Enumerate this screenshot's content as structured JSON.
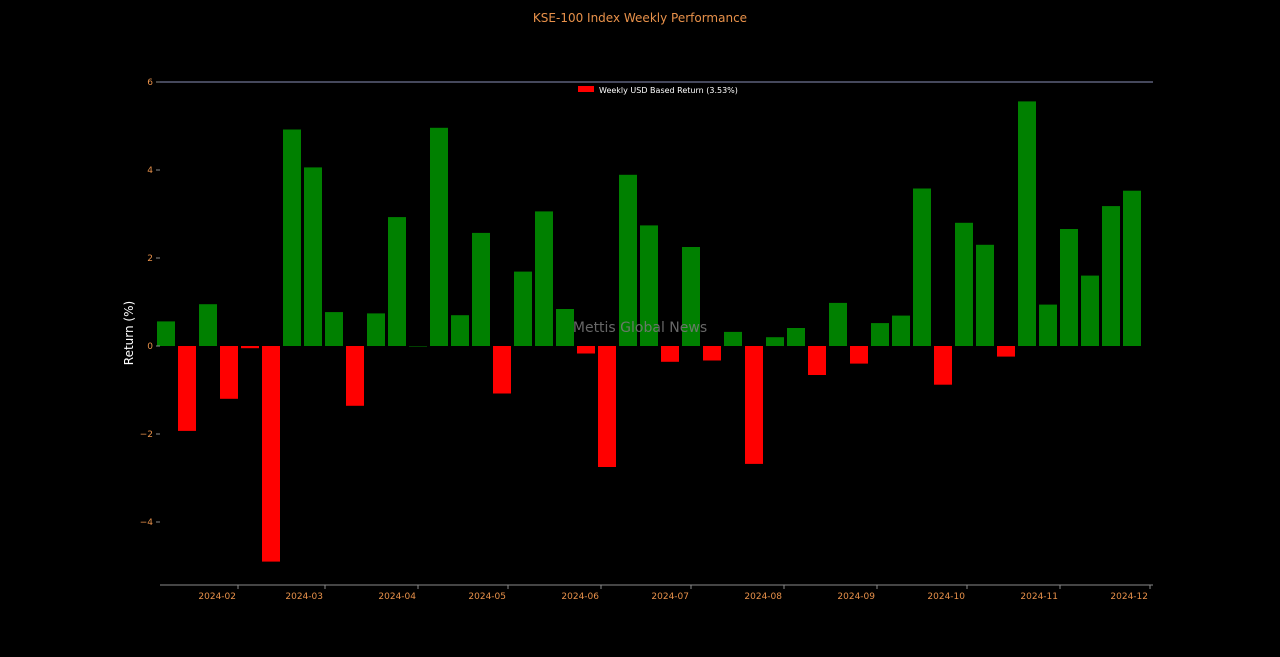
{
  "chart_data": {
    "type": "bar",
    "title": "KSE-100 Index Weekly Performance",
    "ylabel": "Return (%)",
    "xlabel": "",
    "ylim": [
      -5.4,
      6.1
    ],
    "yticks": [
      -4,
      -2,
      0,
      2,
      4,
      6
    ],
    "ytick_labels": [
      "−4",
      "−2",
      "0",
      "2",
      "4",
      "6"
    ],
    "xticks": [
      {
        "label": "2024-02",
        "date": "2024-02-01"
      },
      {
        "label": "2024-03",
        "date": "2024-03-01"
      },
      {
        "label": "2024-04",
        "date": "2024-04-01"
      },
      {
        "label": "2024-05",
        "date": "2024-05-01"
      },
      {
        "label": "2024-06",
        "date": "2024-06-01"
      },
      {
        "label": "2024-07",
        "date": "2024-07-01"
      },
      {
        "label": "2024-08",
        "date": "2024-08-01"
      },
      {
        "label": "2024-09",
        "date": "2024-09-01"
      },
      {
        "label": "2024-10",
        "date": "2024-10-01"
      },
      {
        "label": "2024-11",
        "date": "2024-11-01"
      },
      {
        "label": "2024-12",
        "date": "2024-12-01"
      }
    ],
    "xlim": [
      "2024-01-06",
      "2024-12-02"
    ],
    "bar_width_days": 6,
    "legend": {
      "label": "Weekly USD Based Return (3.53%)",
      "color": "#ff0000",
      "position": "top-center"
    },
    "reference_line": {
      "y": 6,
      "color": "#8a8fb8"
    },
    "watermark": "Mettis Global News",
    "colors": {
      "positive": "#008000",
      "negative": "#ff0000",
      "axis": "#8a8a8a",
      "tick_text": "#e8914a"
    },
    "series": [
      {
        "x": [
          "2024-01-08",
          "2024-01-15",
          "2024-01-22",
          "2024-01-29",
          "2024-02-05",
          "2024-02-12",
          "2024-02-19",
          "2024-02-26",
          "2024-03-04",
          "2024-03-11",
          "2024-03-18",
          "2024-03-25",
          "2024-04-01",
          "2024-04-08",
          "2024-04-15",
          "2024-04-22",
          "2024-04-29",
          "2024-05-06",
          "2024-05-13",
          "2024-05-20",
          "2024-05-27",
          "2024-06-03",
          "2024-06-10",
          "2024-06-17",
          "2024-06-24",
          "2024-07-01",
          "2024-07-08",
          "2024-07-15",
          "2024-07-22",
          "2024-07-29",
          "2024-08-05",
          "2024-08-12",
          "2024-08-19",
          "2024-08-26",
          "2024-09-02",
          "2024-09-09",
          "2024-09-16",
          "2024-09-23",
          "2024-09-30",
          "2024-10-07",
          "2024-10-14",
          "2024-10-21",
          "2024-10-28",
          "2024-11-04",
          "2024-11-11",
          "2024-11-18",
          "2024-11-25"
        ],
        "values": [
          0.56,
          -1.93,
          0.95,
          -1.2,
          -0.05,
          -4.9,
          4.92,
          4.06,
          0.77,
          -1.36,
          0.74,
          2.93,
          0.0,
          4.96,
          0.7,
          2.57,
          -1.08,
          1.69,
          3.06,
          0.84,
          -0.17,
          -2.75,
          3.89,
          2.74,
          -0.36,
          2.25,
          -0.33,
          0.32,
          -2.68,
          0.2,
          0.41,
          -0.66,
          0.98,
          -0.4,
          0.52,
          0.69,
          3.58,
          -0.88,
          2.8,
          2.3,
          -0.24,
          5.56,
          0.94,
          2.66,
          1.6,
          3.18,
          3.53
        ]
      }
    ]
  }
}
